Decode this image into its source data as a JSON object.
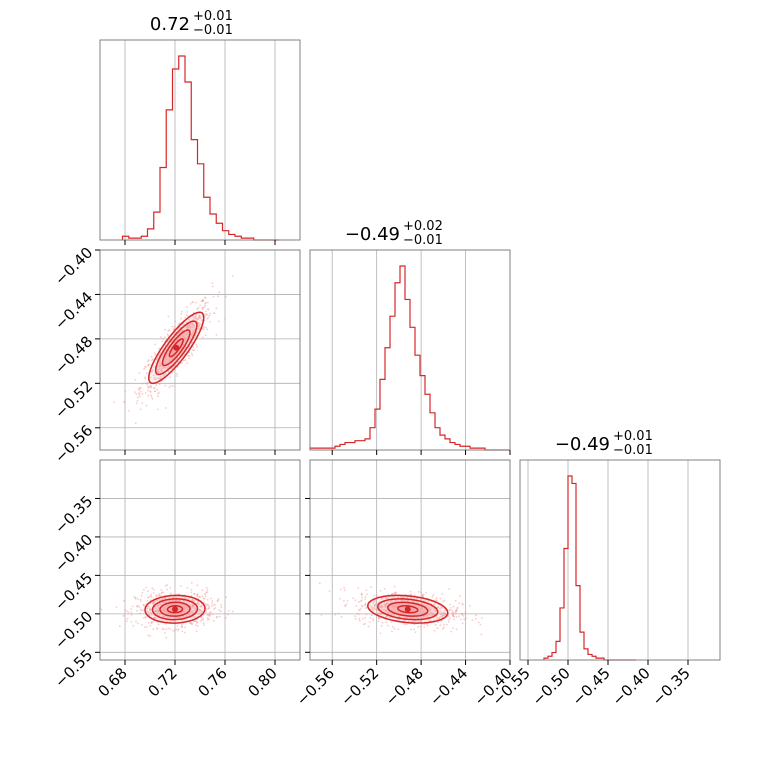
{
  "chart_data": [
    {
      "type": "histogram",
      "panel": "p0",
      "title_value": "0.72",
      "title_plus": "+0.01",
      "title_minus": "−0.01",
      "xlim": [
        0.66,
        0.82
      ],
      "grid": true,
      "bins_x": [
        0.678,
        0.683,
        0.688,
        0.693,
        0.698,
        0.703,
        0.708,
        0.713,
        0.718,
        0.723,
        0.728,
        0.733,
        0.738,
        0.743,
        0.748,
        0.753,
        0.758,
        0.763,
        0.768,
        0.773,
        0.778,
        0.783,
        0.788,
        0.793,
        0.798
      ],
      "counts": [
        2,
        1,
        1,
        2,
        6,
        15,
        39,
        70,
        92,
        99,
        85,
        54,
        41,
        23,
        14,
        9,
        5,
        3,
        2,
        1,
        1,
        0,
        0,
        0,
        0
      ],
      "color": "#d62728"
    },
    {
      "type": "histogram",
      "panel": "p1",
      "title_value": "−0.49",
      "title_plus": "+0.02",
      "title_minus": "−0.01",
      "xlim": [
        -0.58,
        -0.4
      ],
      "grid": true,
      "bins_x": [
        -0.58,
        -0.5755,
        -0.571,
        -0.5665,
        -0.562,
        -0.5575,
        -0.553,
        -0.5485,
        -0.544,
        -0.5395,
        -0.535,
        -0.5305,
        -0.526,
        -0.5215,
        -0.517,
        -0.5125,
        -0.508,
        -0.5035,
        -0.499,
        -0.4945,
        -0.49,
        -0.4855,
        -0.481,
        -0.4765,
        -0.472,
        -0.4675,
        -0.463,
        -0.4585,
        -0.454,
        -0.4495,
        -0.445,
        -0.4405,
        -0.436,
        -0.4315,
        -0.427,
        -0.4225,
        -0.418,
        -0.4135,
        -0.409,
        -0.4045
      ],
      "counts": [
        1,
        1,
        1,
        1,
        1,
        2,
        3,
        4,
        4,
        5,
        5,
        6,
        12,
        22,
        38,
        55,
        72,
        90,
        99,
        81,
        66,
        51,
        40,
        30,
        20,
        12,
        8,
        6,
        4,
        3,
        2,
        2,
        1,
        1,
        1,
        0,
        0,
        0,
        0,
        0
      ],
      "color": "#d62728"
    },
    {
      "type": "histogram",
      "panel": "p2",
      "title_value": "−0.49",
      "title_plus": "+0.01",
      "title_minus": "−0.01",
      "xlim": [
        -0.56,
        -0.31
      ],
      "grid": true,
      "bins_x": [
        -0.53,
        -0.525,
        -0.52,
        -0.515,
        -0.51,
        -0.505,
        -0.5,
        -0.495,
        -0.49,
        -0.485,
        -0.48,
        -0.475,
        -0.47,
        -0.465,
        -0.46,
        -0.455,
        -0.45,
        -0.445,
        -0.44,
        -0.435,
        -0.43,
        -0.425,
        -0.42
      ],
      "counts": [
        1,
        2,
        4,
        10,
        28,
        60,
        99,
        95,
        40,
        15,
        6,
        3,
        2,
        1,
        1,
        0,
        0,
        0,
        0,
        0,
        0,
        0,
        0
      ],
      "color": "#d62728"
    },
    {
      "type": "contour",
      "panel": "p10",
      "x_param": 0,
      "y_param": 1,
      "xlim": [
        0.66,
        0.82
      ],
      "ylim": [
        -0.58,
        -0.4
      ],
      "mean": [
        0.721,
        -0.488
      ],
      "sigma": [
        0.011,
        0.016
      ],
      "rho": 0.85,
      "levels": [
        0.5,
        1.0,
        1.5,
        2.0
      ],
      "color": "#d62728"
    },
    {
      "type": "contour",
      "panel": "p20",
      "x_param": 0,
      "y_param": 2,
      "xlim": [
        0.66,
        0.82
      ],
      "ylim": [
        -0.56,
        -0.3
      ],
      "mean": [
        0.72,
        -0.494
      ],
      "sigma": [
        0.012,
        0.009
      ],
      "rho": 0.05,
      "levels": [
        0.5,
        1.0,
        1.5,
        2.0
      ],
      "color": "#d62728"
    },
    {
      "type": "contour",
      "panel": "p21",
      "x_param": 1,
      "y_param": 2,
      "xlim": [
        -0.58,
        -0.4
      ],
      "ylim": [
        -0.56,
        -0.3
      ],
      "mean": [
        -0.492,
        -0.494
      ],
      "sigma": [
        0.018,
        0.009
      ],
      "rho": -0.25,
      "levels": [
        0.5,
        1.0,
        1.5,
        2.0
      ],
      "color": "#d62728"
    }
  ],
  "axes": {
    "x0_ticks": [
      {
        "v": 0.68,
        "label": "0.68"
      },
      {
        "v": 0.72,
        "label": "0.72"
      },
      {
        "v": 0.76,
        "label": "0.76"
      },
      {
        "v": 0.8,
        "label": "0.80"
      }
    ],
    "x1_ticks": [
      {
        "v": -0.56,
        "label": "−0.56"
      },
      {
        "v": -0.52,
        "label": "−0.52"
      },
      {
        "v": -0.48,
        "label": "−0.48"
      },
      {
        "v": -0.44,
        "label": "−0.44"
      },
      {
        "v": -0.4,
        "label": "−0.40"
      }
    ],
    "x2_ticks": [
      {
        "v": -0.55,
        "label": "−0.55"
      },
      {
        "v": -0.5,
        "label": "−0.50"
      },
      {
        "v": -0.45,
        "label": "−0.45"
      },
      {
        "v": -0.4,
        "label": "−0.40"
      },
      {
        "v": -0.35,
        "label": "−0.35"
      }
    ],
    "y1_ticks": [
      {
        "v": -0.4,
        "label": "−0.40"
      },
      {
        "v": -0.44,
        "label": "−0.44"
      },
      {
        "v": -0.48,
        "label": "−0.48"
      },
      {
        "v": -0.52,
        "label": "−0.52"
      },
      {
        "v": -0.56,
        "label": "−0.56"
      }
    ],
    "y2_ticks": [
      {
        "v": -0.35,
        "label": "−0.35"
      },
      {
        "v": -0.4,
        "label": "−0.40"
      },
      {
        "v": -0.45,
        "label": "−0.45"
      },
      {
        "v": -0.5,
        "label": "−0.50"
      },
      {
        "v": -0.55,
        "label": "−0.55"
      }
    ]
  },
  "colors": {
    "line": "#d62728",
    "fill": "#f4a3a6",
    "points": "#ef9a9a",
    "grid": "#b0b0b0",
    "frame": "#808080"
  }
}
